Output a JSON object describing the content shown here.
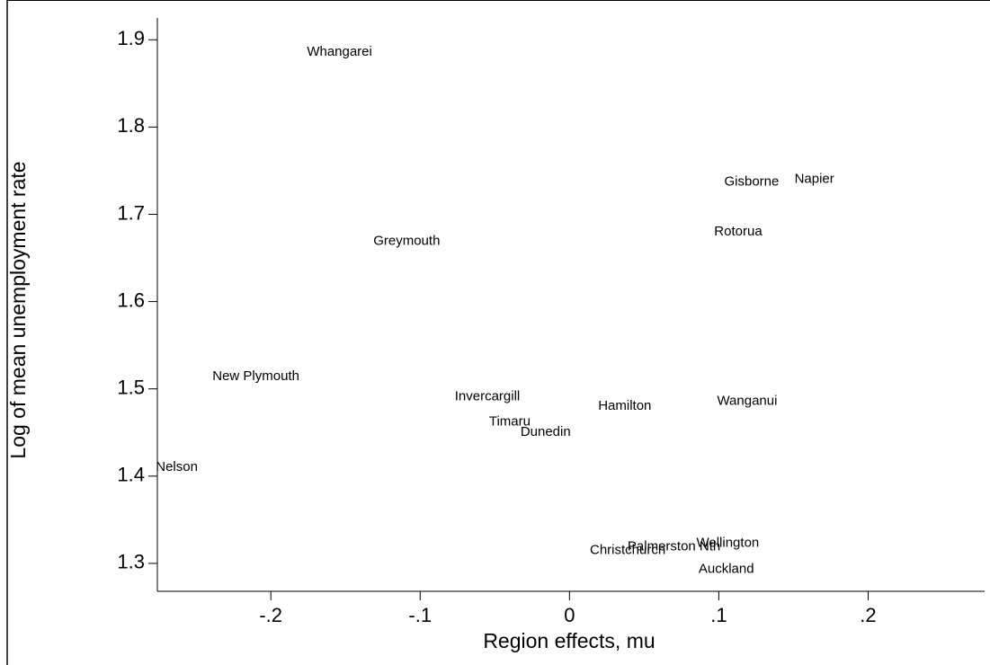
{
  "chart_data": {
    "type": "scatter",
    "x_label": "Region effects, mu",
    "y_label": "Log of mean unemployment rate",
    "labels": [
      "Whangarei",
      "Gisborne",
      "Napier",
      "Rotorua",
      "Greymouth",
      "New Plymouth",
      "Invercargill",
      "Hamilton",
      "Wanganui",
      "Timaru",
      "Dunedin",
      "Nelson",
      "Christchurch",
      "Palmerston Nth",
      "Wellington",
      "Auckland"
    ],
    "x": [
      -0.154,
      0.122,
      0.164,
      0.113,
      -0.109,
      -0.21,
      -0.055,
      0.037,
      0.119,
      -0.04,
      -0.016,
      -0.263,
      0.039,
      0.07,
      0.106,
      0.105
    ],
    "values": [
      1.886,
      1.737,
      1.74,
      1.68,
      1.669,
      1.514,
      1.491,
      1.48,
      1.486,
      1.462,
      1.45,
      1.41,
      1.315,
      1.319,
      1.323,
      1.293
    ],
    "color": "#000000",
    "xlim": [
      -0.276,
      0.278
    ],
    "ylim": [
      1.268,
      1.925
    ],
    "xticks": [
      {
        "value": -0.2,
        "label": "-.2"
      },
      {
        "value": -0.1,
        "label": "-.1"
      },
      0,
      {
        "value": 0.1,
        "label": ".1"
      },
      {
        "value": 0.2,
        "label": ".2"
      }
    ],
    "yticks": [
      1.3,
      1.4,
      1.5,
      1.6,
      1.7,
      1.8,
      1.9
    ]
  }
}
